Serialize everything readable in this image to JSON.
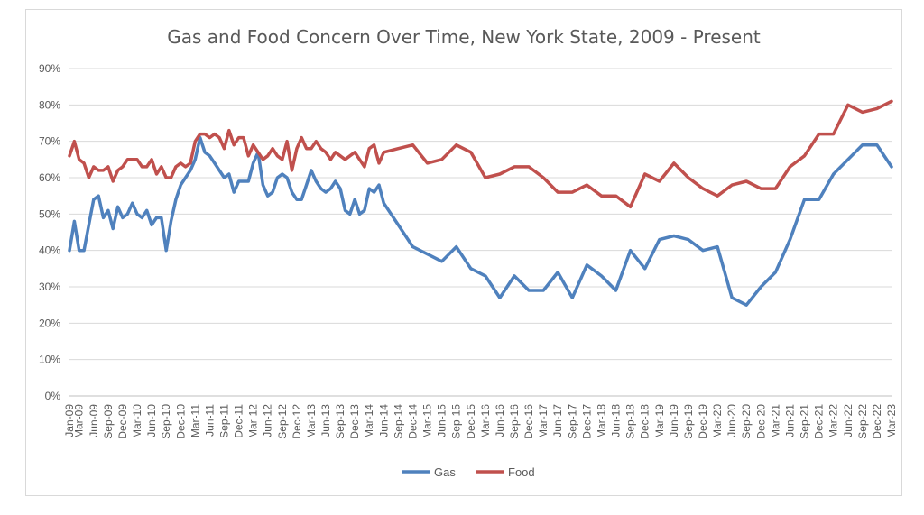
{
  "chart_data": {
    "type": "line",
    "title": "Gas and Food Concern Over Time, New York State, 2009 - Present",
    "xlabel": "",
    "ylabel": "",
    "ylim": [
      0,
      90
    ],
    "y_ticks": [
      "0%",
      "10%",
      "20%",
      "30%",
      "40%",
      "50%",
      "60%",
      "70%",
      "80%",
      "90%"
    ],
    "grid": "horizontal",
    "legend_position": "bottom",
    "x_tick_labels": [
      "Jan-09",
      "Mar-09",
      "Jun-09",
      "Sep-09",
      "Dec-09",
      "Mar-10",
      "Jun-10",
      "Sep-10",
      "Dec-10",
      "Mar-11",
      "Jun-11",
      "Sep-11",
      "Dec-11",
      "Mar-12",
      "Jun-12",
      "Sep-12",
      "Dec-12",
      "Mar-13",
      "Jun-13",
      "Sep-13",
      "Dec-13",
      "Mar-14",
      "Jun-14",
      "Sep-14",
      "Dec-14",
      "Mar-15",
      "Jun-15",
      "Sep-15",
      "Dec-15",
      "Mar-16",
      "Jun-16",
      "Sep-16",
      "Dec-16",
      "Mar-17",
      "Jun-17",
      "Sep-17",
      "Dec-17",
      "Mar-18",
      "Jun-18",
      "Sep-18",
      "Dec-18",
      "Mar-19",
      "Jun-19",
      "Sep-19",
      "Dec-19",
      "Mar-20",
      "Jun-20",
      "Sep-20",
      "Dec-20",
      "Mar-21",
      "Jun-21",
      "Sep-21",
      "Dec-21",
      "Mar-22",
      "Jun-22",
      "Sep-22",
      "Dec-22",
      "Mar-23"
    ],
    "x_tick_months": [
      0,
      2,
      5,
      8,
      11,
      14,
      17,
      20,
      23,
      26,
      29,
      32,
      35,
      38,
      41,
      44,
      47,
      50,
      53,
      56,
      59,
      62,
      65,
      68,
      71,
      74,
      77,
      80,
      83,
      86,
      89,
      92,
      95,
      98,
      101,
      104,
      107,
      110,
      113,
      116,
      119,
      122,
      125,
      128,
      131,
      134,
      137,
      140,
      143,
      146,
      149,
      152,
      155,
      158,
      161,
      164,
      167,
      170
    ],
    "series": [
      {
        "name": "Gas",
        "color": "#4f81bd",
        "points": [
          [
            0,
            40
          ],
          [
            1,
            48
          ],
          [
            2,
            40
          ],
          [
            3,
            40
          ],
          [
            4,
            47
          ],
          [
            5,
            54
          ],
          [
            6,
            55
          ],
          [
            7,
            49
          ],
          [
            8,
            51
          ],
          [
            9,
            46
          ],
          [
            10,
            52
          ],
          [
            11,
            49
          ],
          [
            12,
            50
          ],
          [
            13,
            53
          ],
          [
            14,
            50
          ],
          [
            15,
            49
          ],
          [
            16,
            51
          ],
          [
            17,
            47
          ],
          [
            18,
            49
          ],
          [
            19,
            49
          ],
          [
            20,
            40
          ],
          [
            21,
            48
          ],
          [
            22,
            54
          ],
          [
            23,
            58
          ],
          [
            24,
            60
          ],
          [
            25,
            62
          ],
          [
            26,
            65
          ],
          [
            27,
            71
          ],
          [
            28,
            67
          ],
          [
            29,
            66
          ],
          [
            30,
            64
          ],
          [
            31,
            62
          ],
          [
            32,
            60
          ],
          [
            33,
            61
          ],
          [
            34,
            56
          ],
          [
            35,
            59
          ],
          [
            36,
            59
          ],
          [
            37,
            59
          ],
          [
            38,
            64
          ],
          [
            39,
            67
          ],
          [
            40,
            58
          ],
          [
            41,
            55
          ],
          [
            42,
            56
          ],
          [
            43,
            60
          ],
          [
            44,
            61
          ],
          [
            45,
            60
          ],
          [
            46,
            56
          ],
          [
            47,
            54
          ],
          [
            48,
            54
          ],
          [
            49,
            58
          ],
          [
            50,
            62
          ],
          [
            51,
            59
          ],
          [
            52,
            57
          ],
          [
            53,
            56
          ],
          [
            54,
            57
          ],
          [
            55,
            59
          ],
          [
            56,
            57
          ],
          [
            57,
            51
          ],
          [
            58,
            50
          ],
          [
            59,
            54
          ],
          [
            60,
            50
          ],
          [
            61,
            51
          ],
          [
            62,
            57
          ],
          [
            63,
            56
          ],
          [
            64,
            58
          ],
          [
            65,
            53
          ],
          [
            68,
            47
          ],
          [
            71,
            41
          ],
          [
            74,
            39
          ],
          [
            77,
            37
          ],
          [
            80,
            41
          ],
          [
            83,
            35
          ],
          [
            86,
            33
          ],
          [
            89,
            27
          ],
          [
            92,
            33
          ],
          [
            95,
            29
          ],
          [
            98,
            29
          ],
          [
            101,
            34
          ],
          [
            104,
            27
          ],
          [
            107,
            36
          ],
          [
            110,
            33
          ],
          [
            113,
            29
          ],
          [
            116,
            40
          ],
          [
            119,
            35
          ],
          [
            122,
            43
          ],
          [
            125,
            44
          ],
          [
            128,
            43
          ],
          [
            131,
            40
          ],
          [
            134,
            41
          ],
          [
            137,
            27
          ],
          [
            140,
            25
          ],
          [
            143,
            30
          ],
          [
            146,
            34
          ],
          [
            149,
            43
          ],
          [
            152,
            54
          ],
          [
            155,
            54
          ],
          [
            158,
            61
          ],
          [
            161,
            65
          ],
          [
            164,
            69
          ],
          [
            167,
            69
          ],
          [
            170,
            63
          ]
        ]
      },
      {
        "name": "Food",
        "color": "#c0504d",
        "points": [
          [
            0,
            66
          ],
          [
            1,
            70
          ],
          [
            2,
            65
          ],
          [
            3,
            64
          ],
          [
            4,
            60
          ],
          [
            5,
            63
          ],
          [
            6,
            62
          ],
          [
            7,
            62
          ],
          [
            8,
            63
          ],
          [
            9,
            59
          ],
          [
            10,
            62
          ],
          [
            11,
            63
          ],
          [
            12,
            65
          ],
          [
            13,
            65
          ],
          [
            14,
            65
          ],
          [
            15,
            63
          ],
          [
            16,
            63
          ],
          [
            17,
            65
          ],
          [
            18,
            61
          ],
          [
            19,
            63
          ],
          [
            20,
            60
          ],
          [
            21,
            60
          ],
          [
            22,
            63
          ],
          [
            23,
            64
          ],
          [
            24,
            63
          ],
          [
            25,
            64
          ],
          [
            26,
            70
          ],
          [
            27,
            72
          ],
          [
            28,
            72
          ],
          [
            29,
            71
          ],
          [
            30,
            72
          ],
          [
            31,
            71
          ],
          [
            32,
            68
          ],
          [
            33,
            73
          ],
          [
            34,
            69
          ],
          [
            35,
            71
          ],
          [
            36,
            71
          ],
          [
            37,
            66
          ],
          [
            38,
            69
          ],
          [
            39,
            67
          ],
          [
            40,
            65
          ],
          [
            41,
            66
          ],
          [
            42,
            68
          ],
          [
            43,
            66
          ],
          [
            44,
            65
          ],
          [
            45,
            70
          ],
          [
            46,
            62
          ],
          [
            47,
            68
          ],
          [
            48,
            71
          ],
          [
            49,
            68
          ],
          [
            50,
            68
          ],
          [
            51,
            70
          ],
          [
            52,
            68
          ],
          [
            53,
            67
          ],
          [
            54,
            65
          ],
          [
            55,
            67
          ],
          [
            56,
            66
          ],
          [
            57,
            65
          ],
          [
            58,
            66
          ],
          [
            59,
            67
          ],
          [
            60,
            65
          ],
          [
            61,
            63
          ],
          [
            62,
            68
          ],
          [
            63,
            69
          ],
          [
            64,
            64
          ],
          [
            65,
            67
          ],
          [
            68,
            68
          ],
          [
            71,
            69
          ],
          [
            74,
            64
          ],
          [
            77,
            65
          ],
          [
            80,
            69
          ],
          [
            83,
            67
          ],
          [
            86,
            60
          ],
          [
            89,
            61
          ],
          [
            92,
            63
          ],
          [
            95,
            63
          ],
          [
            98,
            60
          ],
          [
            101,
            56
          ],
          [
            104,
            56
          ],
          [
            107,
            58
          ],
          [
            110,
            55
          ],
          [
            113,
            55
          ],
          [
            116,
            52
          ],
          [
            119,
            61
          ],
          [
            122,
            59
          ],
          [
            125,
            64
          ],
          [
            128,
            60
          ],
          [
            131,
            57
          ],
          [
            134,
            55
          ],
          [
            137,
            58
          ],
          [
            140,
            59
          ],
          [
            143,
            57
          ],
          [
            146,
            57
          ],
          [
            149,
            63
          ],
          [
            152,
            66
          ],
          [
            155,
            72
          ],
          [
            158,
            72
          ],
          [
            161,
            80
          ],
          [
            164,
            78
          ],
          [
            167,
            79
          ],
          [
            170,
            81
          ]
        ]
      }
    ]
  }
}
